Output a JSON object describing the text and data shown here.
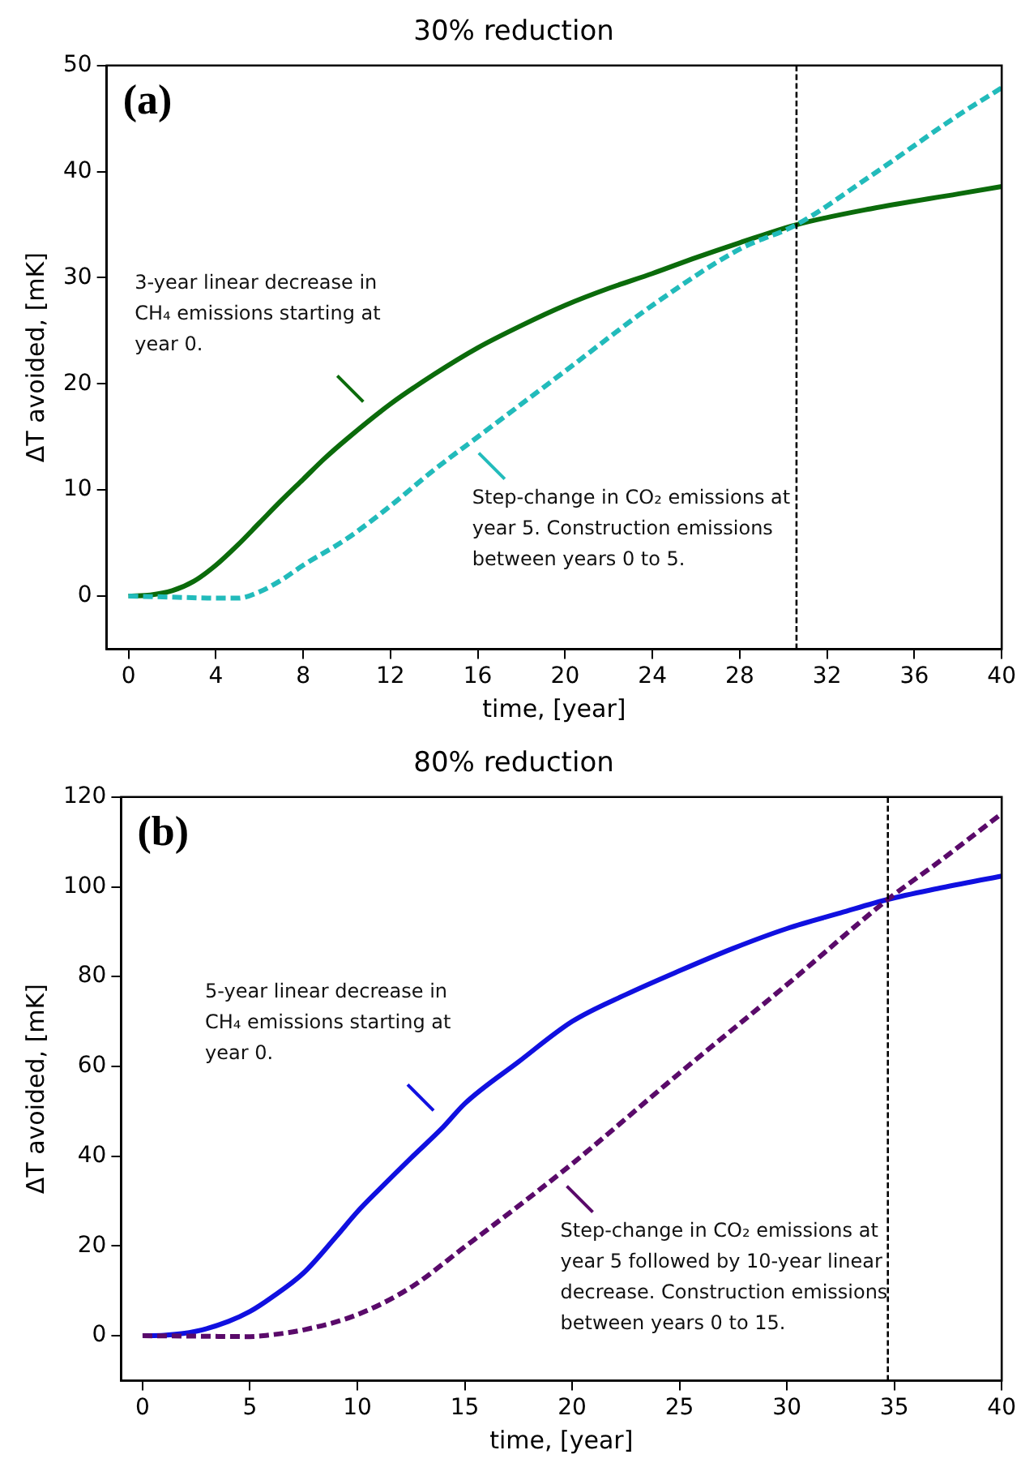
{
  "chart_data": [
    {
      "type": "line",
      "title": "30% reduction",
      "xlabel": "time, [year]",
      "ylabel": "ΔT avoided, [mK]",
      "xlim": [
        -1,
        40
      ],
      "ylim": [
        -5,
        50
      ],
      "xticks": [
        0,
        4,
        8,
        12,
        16,
        20,
        24,
        28,
        32,
        36,
        40
      ],
      "yticks": [
        0,
        10,
        20,
        30,
        40,
        50
      ],
      "grid": false,
      "legend": false,
      "marker": "none",
      "series": [
        {
          "color": "#0b6b0b",
          "line_style": "solid",
          "x": [
            0,
            1,
            2,
            3,
            4,
            5,
            6,
            7,
            8,
            9,
            10,
            12,
            14,
            16,
            18,
            20,
            22,
            24,
            26,
            28,
            30.6,
            34,
            38,
            40
          ],
          "values": [
            0,
            0.1,
            0.5,
            1.4,
            2.9,
            4.8,
            6.9,
            9,
            11,
            13,
            14.8,
            18.1,
            20.9,
            23.4,
            25.5,
            27.4,
            29,
            30.4,
            31.9,
            33.3,
            35,
            36.5,
            37.9,
            38.6
          ]
        },
        {
          "color": "#22bbbb",
          "line_style": "dashed",
          "x": [
            0,
            2,
            4,
            5,
            6,
            7,
            8,
            10,
            12,
            14,
            16,
            18,
            20,
            24,
            28,
            30.6,
            34,
            38,
            40
          ],
          "values": [
            0,
            -0.1,
            -0.2,
            -0.2,
            0.4,
            1.5,
            2.9,
            5.4,
            8.5,
            11.9,
            15,
            18.1,
            21.2,
            27.4,
            32.7,
            35,
            39.6,
            45.3,
            47.9
          ]
        }
      ],
      "ref_lines": [
        {
          "axis": "x",
          "value": 30.6,
          "color": "#000000",
          "line_style": "dashed"
        }
      ],
      "annotations": [
        "(a)",
        {
          "text": "3-year linear decrease in CH₄ emissions starting at year 0.",
          "x": 11.2,
          "y": 17.4
        },
        {
          "text": "Step-change in CO₂ emissions at year 5. Construction emissions between years 0 to 5.",
          "x": 15.6,
          "y": 14.4
        }
      ]
    },
    {
      "type": "line",
      "title": "80% reduction",
      "xlabel": "time, [year]",
      "ylabel": "ΔT avoided, [mK]",
      "xlim": [
        -1,
        40
      ],
      "ylim": [
        -10,
        120
      ],
      "xticks": [
        0,
        5,
        10,
        15,
        20,
        25,
        30,
        35,
        40
      ],
      "yticks": [
        0,
        20,
        40,
        60,
        80,
        100,
        120
      ],
      "grid": false,
      "legend": false,
      "marker": "none",
      "series": [
        {
          "color": "#1010e0",
          "line_style": "solid",
          "x": [
            0,
            1,
            2.5,
            4,
            5,
            6,
            7.5,
            9,
            10,
            11,
            12.5,
            14,
            15,
            17.5,
            20,
            22.5,
            25,
            27.5,
            30,
            32.5,
            34.7,
            37,
            40
          ],
          "values": [
            0,
            0.1,
            1,
            3.2,
            5.4,
            8.5,
            14,
            22,
            27.6,
            32.5,
            39.6,
            46.5,
            51.7,
            61,
            70,
            76,
            81.3,
            86.3,
            90.7,
            94.2,
            97.2,
            99.6,
            102.4
          ]
        },
        {
          "color": "#5a0a6a",
          "line_style": "dashed",
          "x": [
            0,
            2.5,
            5,
            6,
            7.5,
            10,
            12.5,
            15,
            17.5,
            20,
            25,
            30,
            34.7,
            37,
            40
          ],
          "values": [
            0,
            -0.1,
            -0.2,
            0.2,
            1.3,
            4.7,
            10.8,
            19.8,
            28.9,
            38.3,
            58.5,
            78.2,
            97.2,
            105.3,
            116.3
          ]
        }
      ],
      "ref_lines": [
        {
          "axis": "x",
          "value": 34.7,
          "color": "#000000",
          "line_style": "dashed"
        }
      ],
      "annotations": [
        "(b)",
        {
          "text": "5-year linear decrease in CH₄ emissions starting at year 0.",
          "x": 14,
          "y": 48
        },
        {
          "text": "Step-change in CO₂ emissions at year 5 followed by 10-year linear decrease. Construction emissions between years 0 to 15.",
          "x": 19.3,
          "y": 35.5
        }
      ]
    }
  ]
}
